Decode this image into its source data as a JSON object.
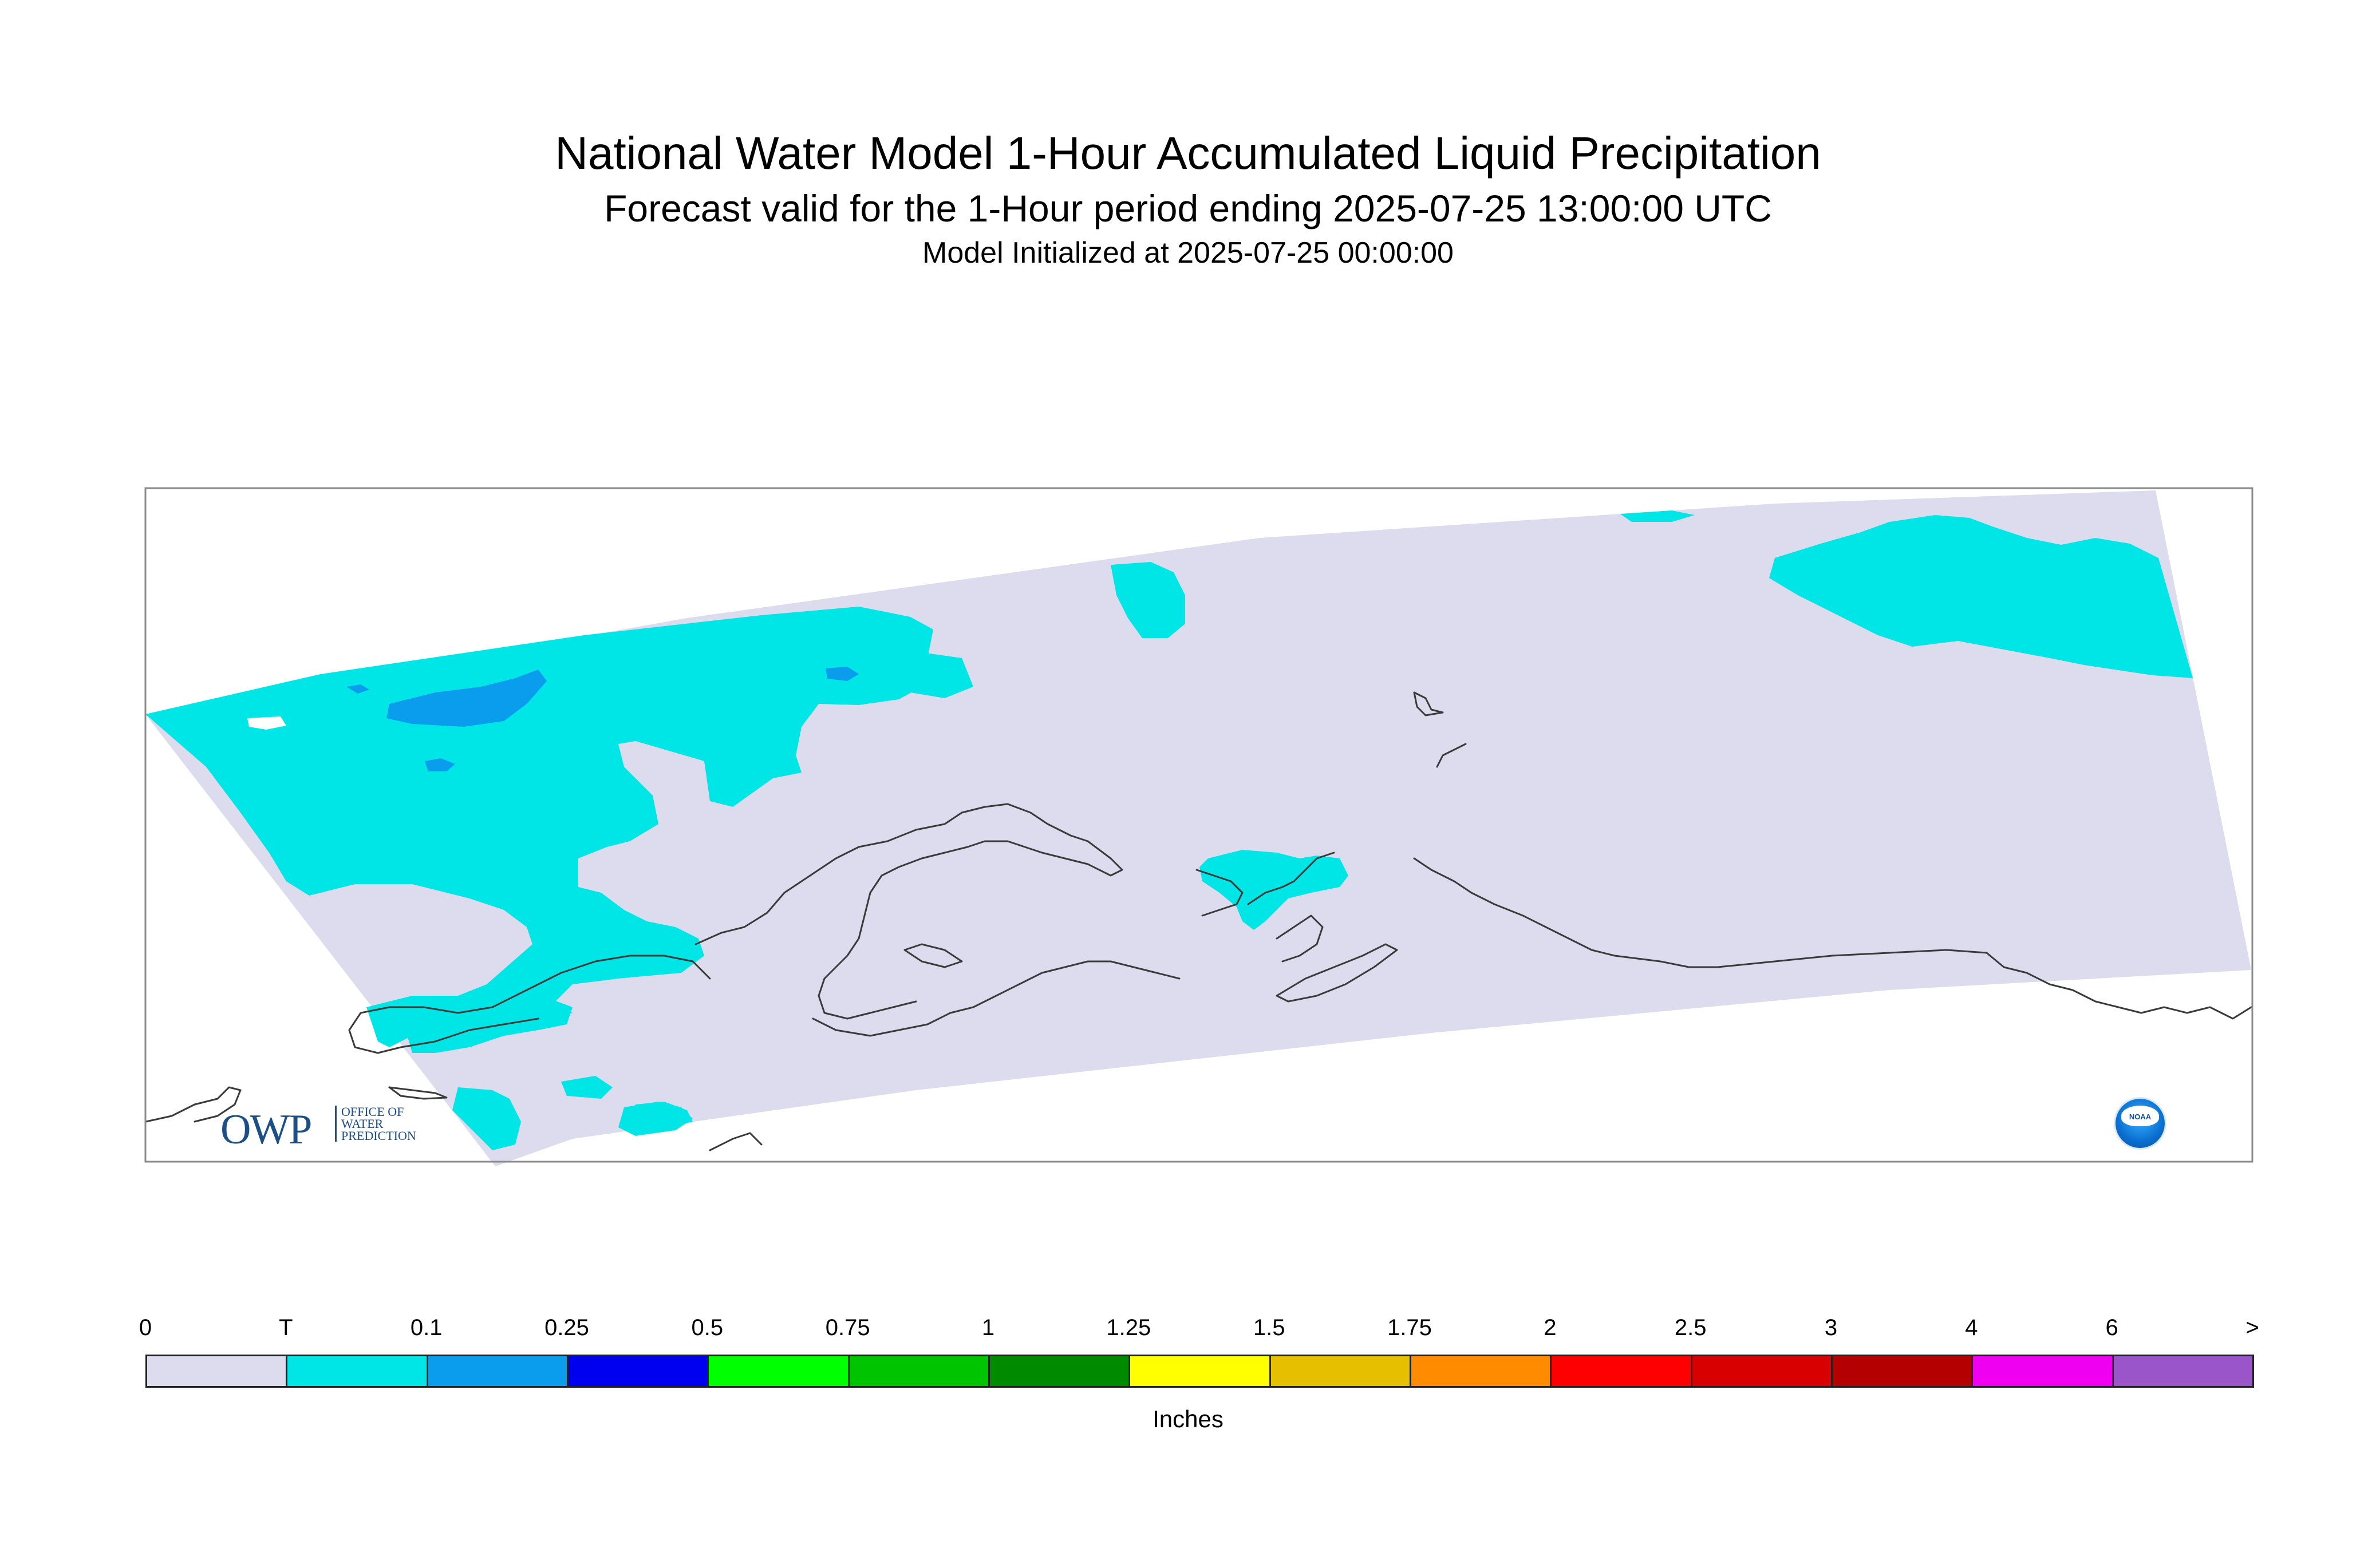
{
  "header": {
    "title": "National Water Model 1-Hour Accumulated Liquid Precipitation",
    "subtitle": "Forecast valid for the 1-Hour period ending 2025-07-25 13:00:00 UTC",
    "init": "Model Initialized at 2025-07-25 00:00:00"
  },
  "map": {
    "no_data_color": "#ffffff",
    "zero_color": "#dcdcee",
    "trace_color": "#00e5e5",
    "light_color": "#0a9ded",
    "coastline_color": "#3a3a3a"
  },
  "logos": {
    "owp_text": "OWP",
    "owp_subtext": [
      "OFFICE OF",
      "WATER",
      "PREDICTION"
    ],
    "noaa_text": "NOAA"
  },
  "colorbar": {
    "units": "Inches",
    "labels": [
      "0",
      "T",
      "0.1",
      "0.25",
      "0.5",
      "0.75",
      "1",
      "1.25",
      "1.5",
      "1.75",
      "2",
      "2.5",
      "3",
      "4",
      "6",
      ">"
    ],
    "colors": [
      "#dcdcee",
      "#00e5e5",
      "#0a9ded",
      "#0000f0",
      "#00ff00",
      "#00c400",
      "#008a00",
      "#ffff00",
      "#e6c000",
      "#ff8c00",
      "#ff0000",
      "#d80000",
      "#b40000",
      "#f000f0",
      "#9a56c8"
    ]
  }
}
